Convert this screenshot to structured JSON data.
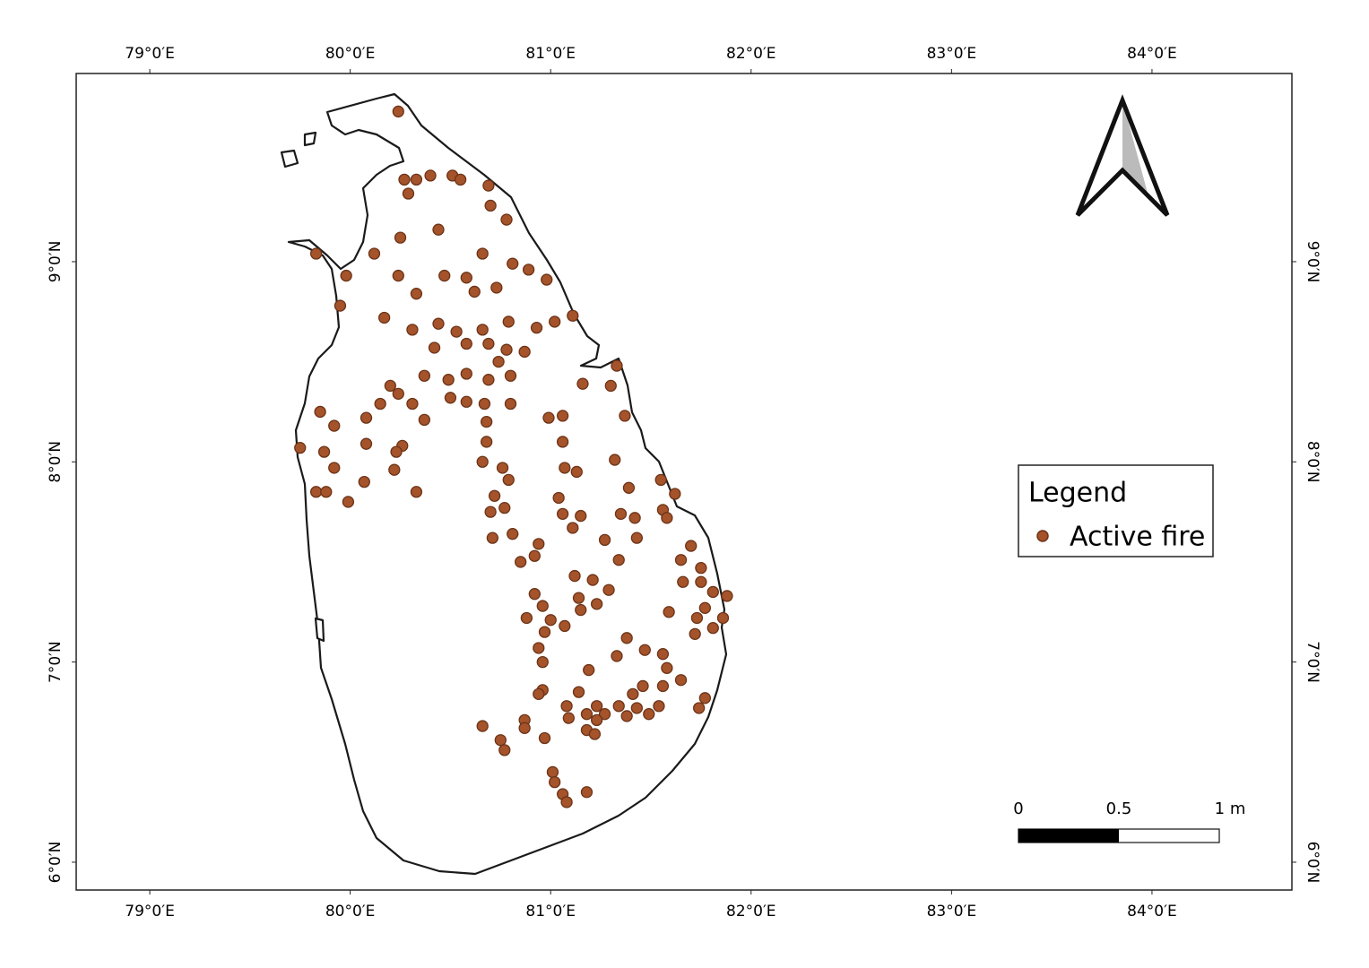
{
  "map": {
    "lon_range": [
      78.633,
      84.698
    ],
    "lat_range": [
      5.861,
      9.94
    ],
    "x_ticks": [
      {
        "value": 79,
        "label": "79°0′E"
      },
      {
        "value": 80,
        "label": "80°0′E"
      },
      {
        "value": 81,
        "label": "81°0′E"
      },
      {
        "value": 82,
        "label": "82°0′E"
      },
      {
        "value": 83,
        "label": "83°0′E"
      },
      {
        "value": 84,
        "label": "84°0′E"
      }
    ],
    "y_ticks": [
      {
        "value": 6,
        "label": "6°0′N"
      },
      {
        "value": 7,
        "label": "7°0′N"
      },
      {
        "value": 8,
        "label": "8°0′N"
      },
      {
        "value": 9,
        "label": "9°0′N"
      }
    ]
  },
  "legend": {
    "title": "Legend",
    "entry": "Active fire",
    "color": "#a5532a"
  },
  "scale_bar": {
    "labels": [
      "0",
      "0.5",
      "1 m"
    ]
  },
  "fires": {
    "points": [
      [
        80.24,
        9.75
      ],
      [
        80.27,
        9.41
      ],
      [
        80.33,
        9.41
      ],
      [
        80.4,
        9.43
      ],
      [
        80.51,
        9.43
      ],
      [
        80.55,
        9.41
      ],
      [
        80.29,
        9.34
      ],
      [
        80.69,
        9.38
      ],
      [
        80.7,
        9.28
      ],
      [
        80.78,
        9.21
      ],
      [
        80.44,
        9.16
      ],
      [
        80.25,
        9.12
      ],
      [
        79.83,
        9.04
      ],
      [
        80.12,
        9.04
      ],
      [
        80.66,
        9.04
      ],
      [
        80.81,
        8.99
      ],
      [
        80.89,
        8.96
      ],
      [
        80.98,
        8.91
      ],
      [
        79.98,
        8.93
      ],
      [
        80.24,
        8.93
      ],
      [
        80.47,
        8.93
      ],
      [
        80.58,
        8.92
      ],
      [
        80.62,
        8.85
      ],
      [
        80.73,
        8.87
      ],
      [
        80.33,
        8.84
      ],
      [
        79.95,
        8.78
      ],
      [
        80.17,
        8.72
      ],
      [
        80.31,
        8.66
      ],
      [
        80.44,
        8.69
      ],
      [
        80.53,
        8.65
      ],
      [
        80.66,
        8.66
      ],
      [
        80.79,
        8.7
      ],
      [
        80.93,
        8.67
      ],
      [
        81.02,
        8.7
      ],
      [
        81.11,
        8.73
      ],
      [
        80.42,
        8.57
      ],
      [
        80.58,
        8.59
      ],
      [
        80.69,
        8.59
      ],
      [
        80.78,
        8.56
      ],
      [
        80.87,
        8.55
      ],
      [
        80.74,
        8.5
      ],
      [
        80.58,
        8.44
      ],
      [
        80.49,
        8.41
      ],
      [
        80.37,
        8.43
      ],
      [
        80.69,
        8.41
      ],
      [
        80.8,
        8.43
      ],
      [
        80.2,
        8.38
      ],
      [
        80.24,
        8.34
      ],
      [
        80.15,
        8.29
      ],
      [
        80.31,
        8.29
      ],
      [
        80.5,
        8.32
      ],
      [
        80.58,
        8.3
      ],
      [
        80.67,
        8.29
      ],
      [
        80.8,
        8.29
      ],
      [
        81.33,
        8.48
      ],
      [
        81.3,
        8.38
      ],
      [
        81.16,
        8.39
      ],
      [
        81.37,
        8.23
      ],
      [
        81.06,
        8.23
      ],
      [
        80.99,
        8.22
      ],
      [
        80.08,
        8.22
      ],
      [
        80.37,
        8.21
      ],
      [
        80.68,
        8.2
      ],
      [
        79.85,
        8.25
      ],
      [
        79.92,
        8.18
      ],
      [
        80.08,
        8.09
      ],
      [
        80.26,
        8.08
      ],
      [
        81.06,
        8.1
      ],
      [
        80.68,
        8.1
      ],
      [
        79.75,
        8.07
      ],
      [
        79.87,
        8.05
      ],
      [
        80.23,
        8.05
      ],
      [
        81.32,
        8.01
      ],
      [
        80.66,
        8.0
      ],
      [
        80.76,
        7.97
      ],
      [
        81.07,
        7.97
      ],
      [
        79.92,
        7.97
      ],
      [
        80.22,
        7.96
      ],
      [
        81.13,
        7.95
      ],
      [
        80.07,
        7.9
      ],
      [
        80.79,
        7.91
      ],
      [
        81.55,
        7.91
      ],
      [
        79.83,
        7.85
      ],
      [
        79.88,
        7.85
      ],
      [
        80.33,
        7.85
      ],
      [
        80.72,
        7.83
      ],
      [
        81.39,
        7.87
      ],
      [
        81.04,
        7.82
      ],
      [
        81.62,
        7.84
      ],
      [
        79.99,
        7.8
      ],
      [
        80.77,
        7.77
      ],
      [
        80.7,
        7.75
      ],
      [
        81.56,
        7.76
      ],
      [
        81.06,
        7.74
      ],
      [
        81.15,
        7.73
      ],
      [
        81.35,
        7.74
      ],
      [
        81.42,
        7.72
      ],
      [
        81.58,
        7.72
      ],
      [
        81.11,
        7.67
      ],
      [
        80.81,
        7.64
      ],
      [
        80.71,
        7.62
      ],
      [
        81.43,
        7.62
      ],
      [
        81.27,
        7.61
      ],
      [
        80.94,
        7.59
      ],
      [
        81.7,
        7.58
      ],
      [
        81.65,
        7.51
      ],
      [
        81.75,
        7.47
      ],
      [
        80.92,
        7.53
      ],
      [
        80.85,
        7.5
      ],
      [
        81.34,
        7.51
      ],
      [
        81.12,
        7.43
      ],
      [
        81.21,
        7.41
      ],
      [
        81.29,
        7.36
      ],
      [
        81.14,
        7.32
      ],
      [
        81.23,
        7.29
      ],
      [
        81.15,
        7.26
      ],
      [
        81.66,
        7.4
      ],
      [
        81.75,
        7.4
      ],
      [
        81.81,
        7.35
      ],
      [
        81.88,
        7.33
      ],
      [
        81.77,
        7.27
      ],
      [
        81.86,
        7.22
      ],
      [
        81.73,
        7.22
      ],
      [
        81.59,
        7.25
      ],
      [
        80.92,
        7.34
      ],
      [
        80.96,
        7.28
      ],
      [
        80.88,
        7.22
      ],
      [
        81.0,
        7.21
      ],
      [
        81.07,
        7.18
      ],
      [
        80.97,
        7.15
      ],
      [
        81.38,
        7.12
      ],
      [
        81.47,
        7.06
      ],
      [
        81.56,
        7.04
      ],
      [
        81.72,
        7.14
      ],
      [
        81.81,
        7.17
      ],
      [
        80.94,
        7.07
      ],
      [
        80.96,
        7.0
      ],
      [
        81.58,
        6.97
      ],
      [
        81.19,
        6.96
      ],
      [
        81.33,
        7.03
      ],
      [
        81.65,
        6.91
      ],
      [
        81.56,
        6.88
      ],
      [
        81.46,
        6.88
      ],
      [
        81.41,
        6.84
      ],
      [
        81.14,
        6.85
      ],
      [
        80.96,
        6.86
      ],
      [
        80.94,
        6.84
      ],
      [
        81.77,
        6.82
      ],
      [
        81.74,
        6.77
      ],
      [
        81.23,
        6.78
      ],
      [
        81.34,
        6.78
      ],
      [
        81.43,
        6.77
      ],
      [
        81.54,
        6.78
      ],
      [
        81.08,
        6.78
      ],
      [
        81.18,
        6.74
      ],
      [
        81.27,
        6.74
      ],
      [
        81.38,
        6.73
      ],
      [
        81.49,
        6.74
      ],
      [
        81.09,
        6.72
      ],
      [
        81.23,
        6.71
      ],
      [
        80.87,
        6.71
      ],
      [
        80.87,
        6.67
      ],
      [
        80.66,
        6.68
      ],
      [
        81.18,
        6.66
      ],
      [
        81.22,
        6.64
      ],
      [
        80.97,
        6.62
      ],
      [
        80.75,
        6.61
      ],
      [
        80.77,
        6.56
      ],
      [
        81.01,
        6.45
      ],
      [
        81.02,
        6.4
      ],
      [
        81.06,
        6.34
      ],
      [
        81.18,
        6.35
      ],
      [
        81.08,
        6.3
      ]
    ]
  }
}
